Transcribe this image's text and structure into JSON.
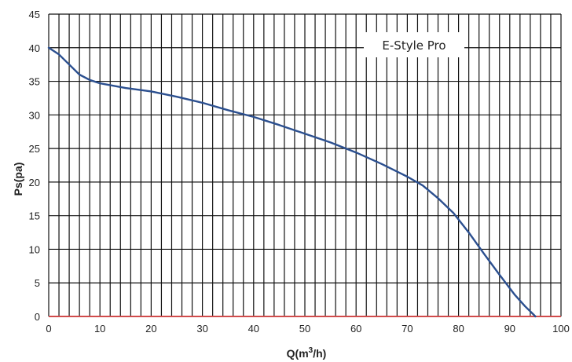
{
  "chart_data": {
    "type": "line",
    "title": "",
    "xlabel_main": "Q(m",
    "xlabel_sup": "3",
    "xlabel_tail": "/h)",
    "ylabel": "Ps(pa)",
    "xlim": [
      0,
      100
    ],
    "ylim": [
      0,
      45
    ],
    "x_ticks": [
      "0",
      "10",
      "20",
      "30",
      "40",
      "50",
      "60",
      "70",
      "80",
      "90",
      "100"
    ],
    "y_ticks": [
      "0",
      "5",
      "10",
      "15",
      "20",
      "25",
      "30",
      "35",
      "40",
      "45"
    ],
    "x_grid_step": 2,
    "y_grid_step": 5,
    "grid": true,
    "legend_position": "top-right",
    "series": [
      {
        "name": "E-Style Pro",
        "color": "#2b4f8f",
        "x": [
          0,
          2,
          4,
          6,
          8,
          10,
          15,
          20,
          25,
          30,
          35,
          40,
          45,
          50,
          55,
          60,
          65,
          70,
          73,
          76,
          79,
          82,
          85,
          88,
          91,
          93,
          94.5,
          95
        ],
        "y": [
          40,
          39,
          37.5,
          36,
          35.2,
          34.7,
          34,
          33.5,
          32.7,
          31.8,
          30.7,
          29.7,
          28.5,
          27.2,
          25.9,
          24.4,
          22.7,
          20.8,
          19.5,
          17.6,
          15.4,
          12.5,
          9.3,
          6.2,
          3.2,
          1.5,
          0.4,
          0
        ]
      }
    ],
    "baseline_color": "#d14b4b",
    "grid_color": "#111111"
  }
}
